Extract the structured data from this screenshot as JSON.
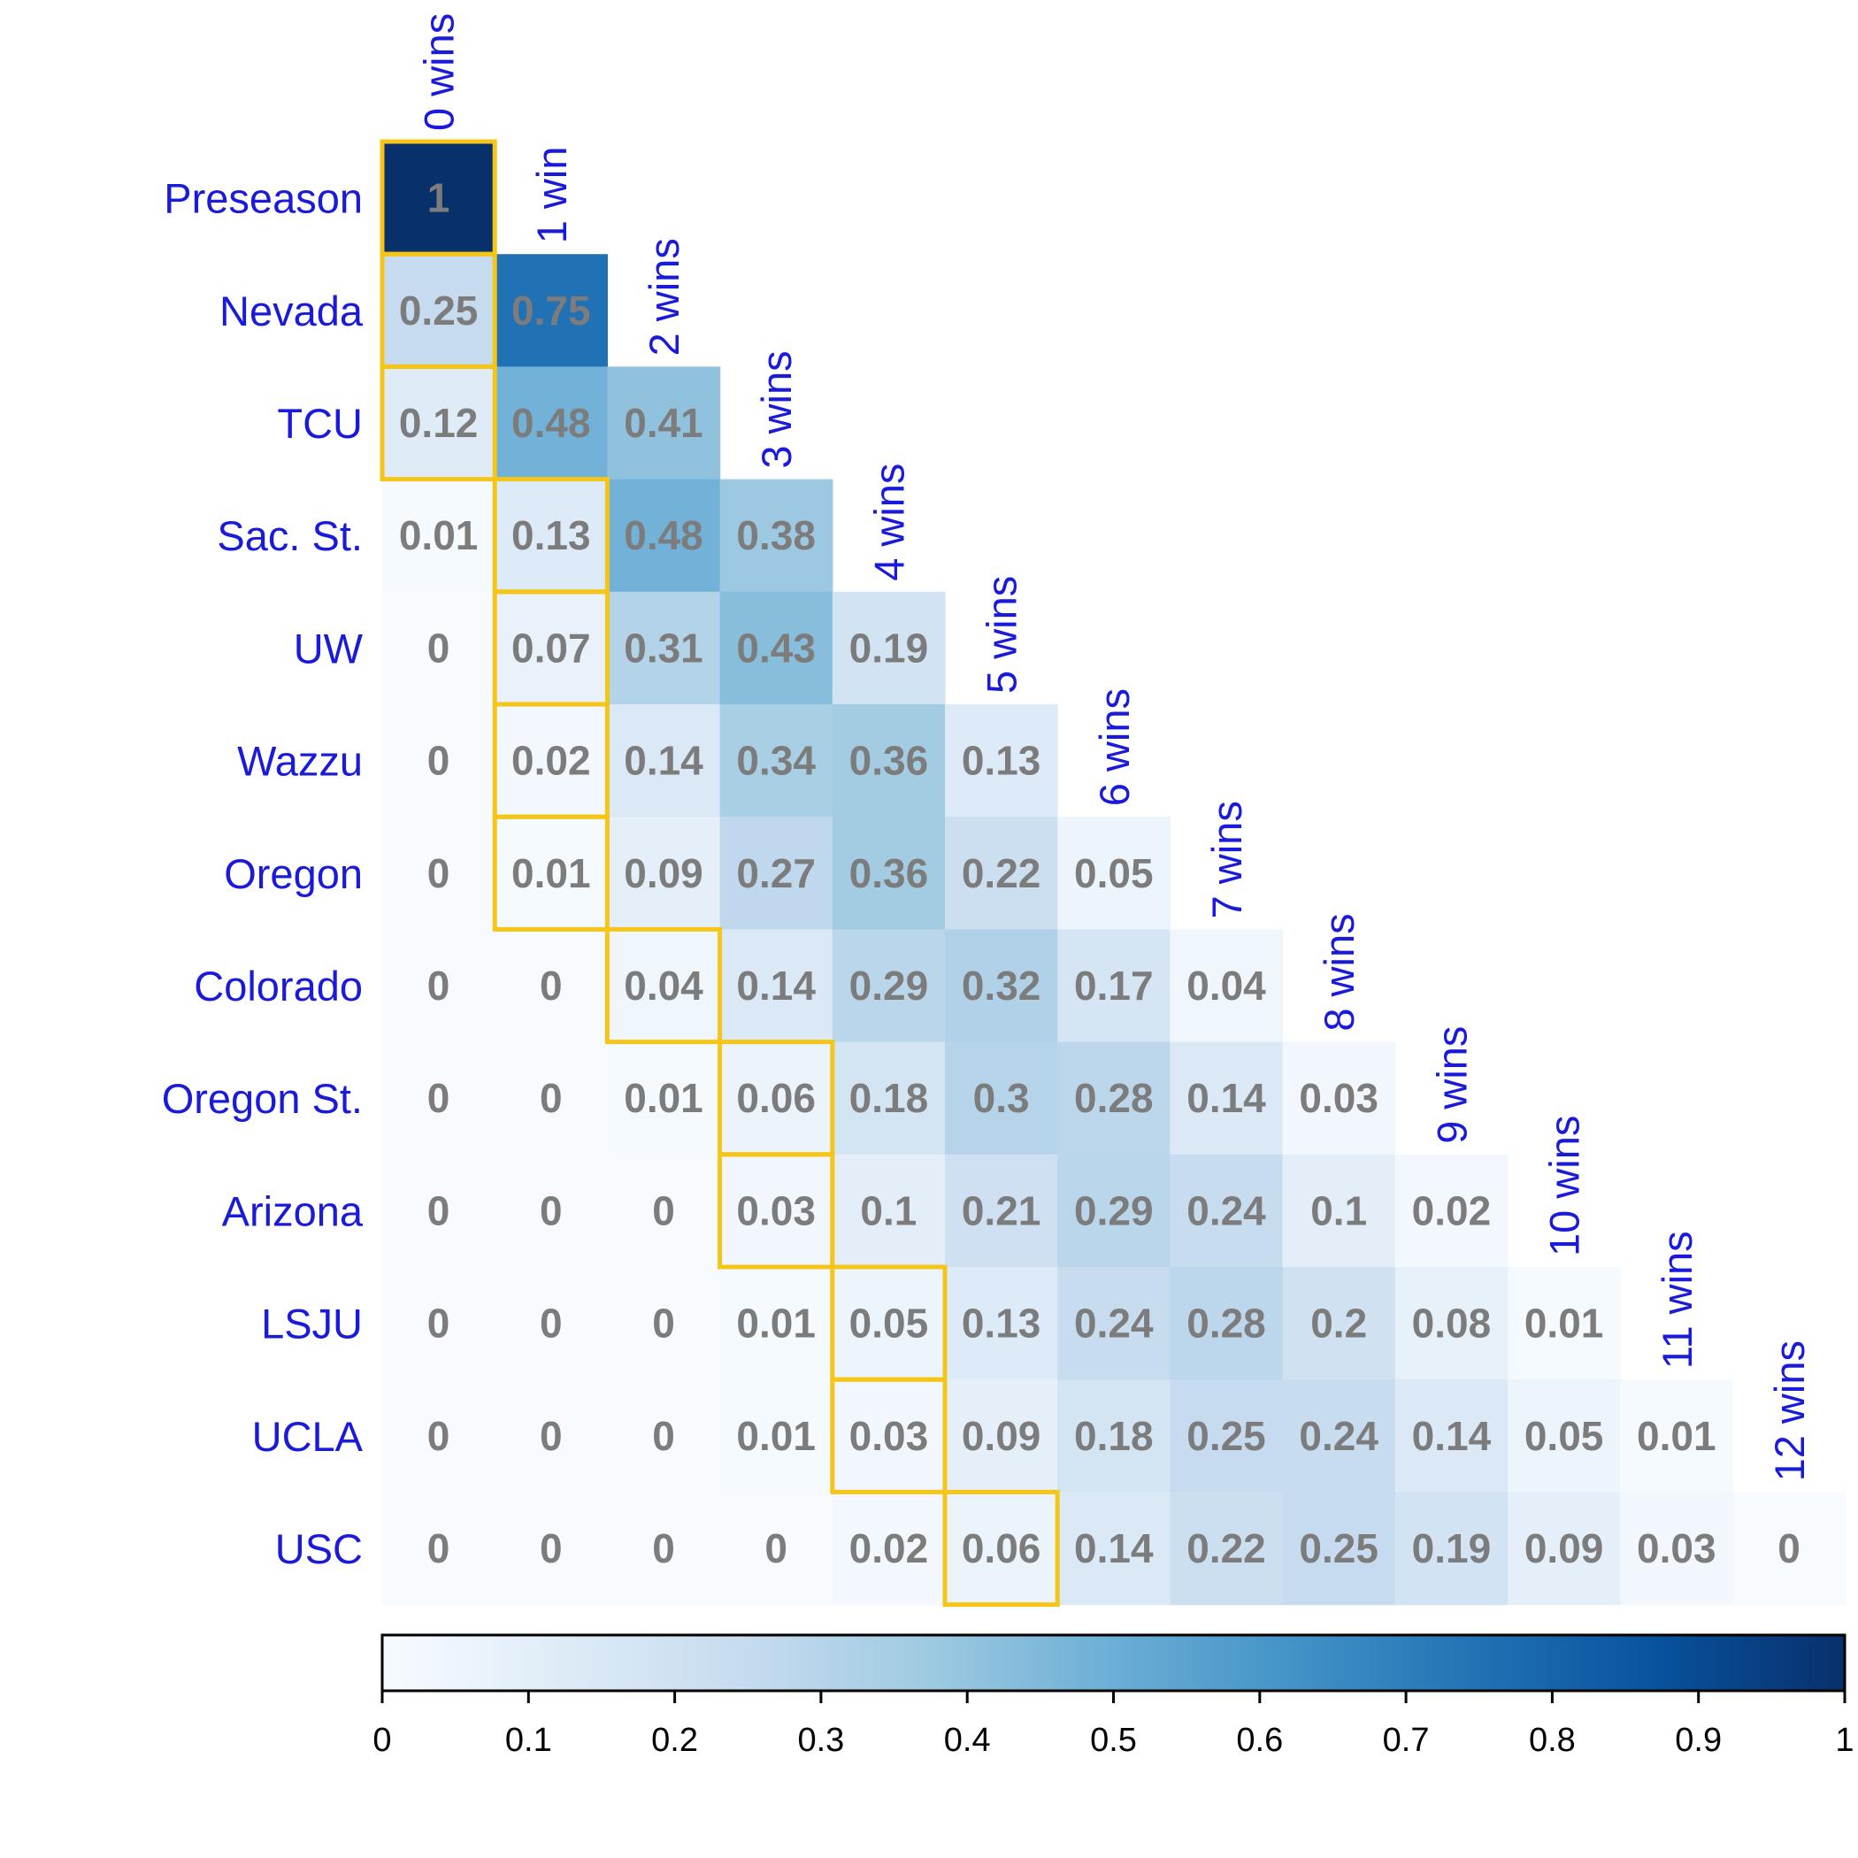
{
  "chart_data": {
    "type": "heatmap",
    "title": "",
    "rows": [
      "Preseason",
      "Nevada",
      "TCU",
      "Sac. St.",
      "UW",
      "Wazzu",
      "Oregon",
      "Colorado",
      "Oregon St.",
      "Arizona",
      "LSJU",
      "UCLA",
      "USC"
    ],
    "columns": [
      "0 wins",
      "1 win",
      "2 wins",
      "3 wins",
      "4 wins",
      "5 wins",
      "6 wins",
      "7 wins",
      "8 wins",
      "9 wins",
      "10 wins",
      "11 wins",
      "12 wins"
    ],
    "values": [
      [
        "1"
      ],
      [
        "0.25",
        "0.75"
      ],
      [
        "0.12",
        "0.48",
        "0.41"
      ],
      [
        "0.01",
        "0.13",
        "0.48",
        "0.38"
      ],
      [
        "0",
        "0.07",
        "0.31",
        "0.43",
        "0.19"
      ],
      [
        "0",
        "0.02",
        "0.14",
        "0.34",
        "0.36",
        "0.13"
      ],
      [
        "0",
        "0.01",
        "0.09",
        "0.27",
        "0.36",
        "0.22",
        "0.05"
      ],
      [
        "0",
        "0",
        "0.04",
        "0.14",
        "0.29",
        "0.32",
        "0.17",
        "0.04"
      ],
      [
        "0",
        "0",
        "0.01",
        "0.06",
        "0.18",
        "0.3",
        "0.28",
        "0.14",
        "0.03"
      ],
      [
        "0",
        "0",
        "0",
        "0.03",
        "0.1",
        "0.21",
        "0.29",
        "0.24",
        "0.1",
        "0.02"
      ],
      [
        "0",
        "0",
        "0",
        "0.01",
        "0.05",
        "0.13",
        "0.24",
        "0.28",
        "0.2",
        "0.08",
        "0.01"
      ],
      [
        "0",
        "0",
        "0",
        "0.01",
        "0.03",
        "0.09",
        "0.18",
        "0.25",
        "0.24",
        "0.14",
        "0.05",
        "0.01"
      ],
      [
        "0",
        "0",
        "0",
        "0",
        "0.02",
        "0.06",
        "0.14",
        "0.22",
        "0.25",
        "0.19",
        "0.09",
        "0.03",
        "0"
      ]
    ],
    "highlighted_cells": [
      [
        0,
        0
      ],
      [
        1,
        0
      ],
      [
        2,
        0
      ],
      [
        3,
        1
      ],
      [
        4,
        1
      ],
      [
        5,
        1
      ],
      [
        6,
        1
      ],
      [
        7,
        2
      ],
      [
        8,
        3
      ],
      [
        9,
        3
      ],
      [
        10,
        4
      ],
      [
        11,
        4
      ],
      [
        12,
        5
      ]
    ],
    "highlight_color": "#f5c518",
    "colorbar": {
      "range": [
        0,
        1
      ],
      "ticks": [
        "0",
        "0.1",
        "0.2",
        "0.3",
        "0.4",
        "0.5",
        "0.6",
        "0.7",
        "0.8",
        "0.9",
        "1"
      ],
      "colors": [
        "#f7fbff",
        "#deebf7",
        "#c6dbef",
        "#9ecae1",
        "#6baed6",
        "#4292c6",
        "#2171b5",
        "#08519c",
        "#08306b"
      ]
    },
    "legend": "bottom"
  }
}
